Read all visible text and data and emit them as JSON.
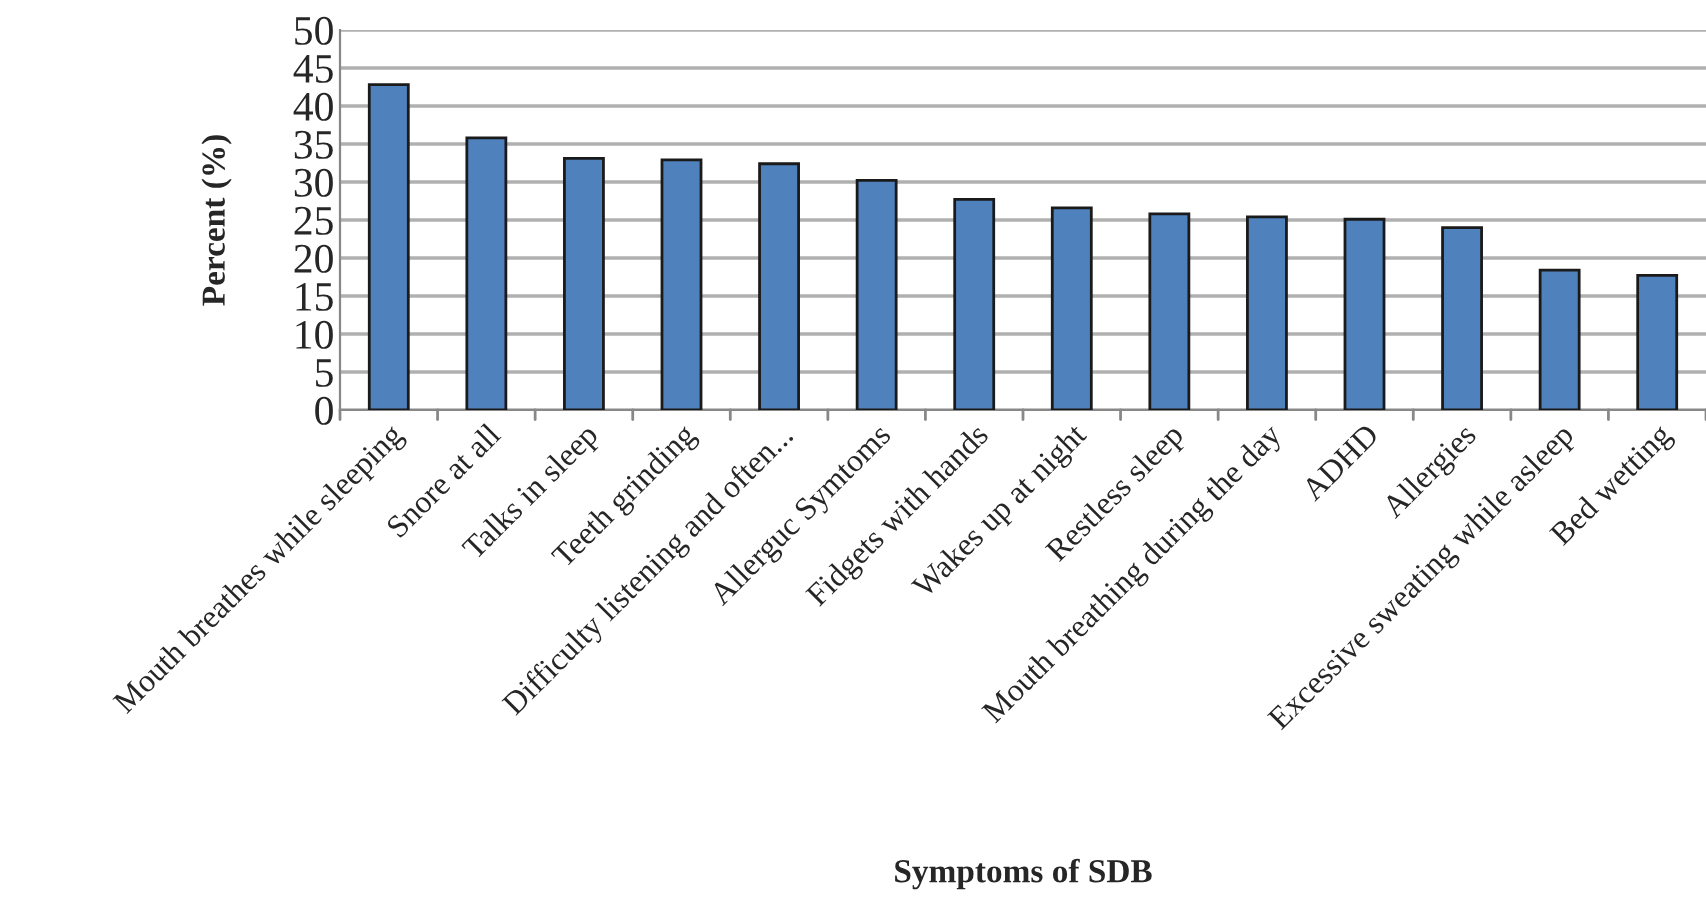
{
  "chart_data": {
    "type": "bar",
    "xlabel": "Symptoms of SDB",
    "ylabel": "Percent (%)",
    "categories": [
      "Mouth breathes while sleeping",
      "Snore at all",
      "Talks in sleep",
      "Teeth grinding",
      "Difficulty listening and often...",
      "Allerguc Symtoms",
      "Fidgets with hands",
      "Wakes up at night",
      "Restless sleep",
      "Mouth breathing during the day",
      "ADHD",
      "Allergies",
      "Excessive sweating while asleep",
      "Bed wetting"
    ],
    "values": [
      42.8,
      35.8,
      33.1,
      32.9,
      32.4,
      30.2,
      27.7,
      26.6,
      25.8,
      25.4,
      25.1,
      24.0,
      18.4,
      17.7
    ],
    "color": "#4f81bd",
    "ylim": [
      0,
      50
    ],
    "yticks": [
      0,
      5,
      10,
      15,
      20,
      25,
      30,
      35,
      40,
      45,
      50
    ],
    "grid": "y"
  }
}
